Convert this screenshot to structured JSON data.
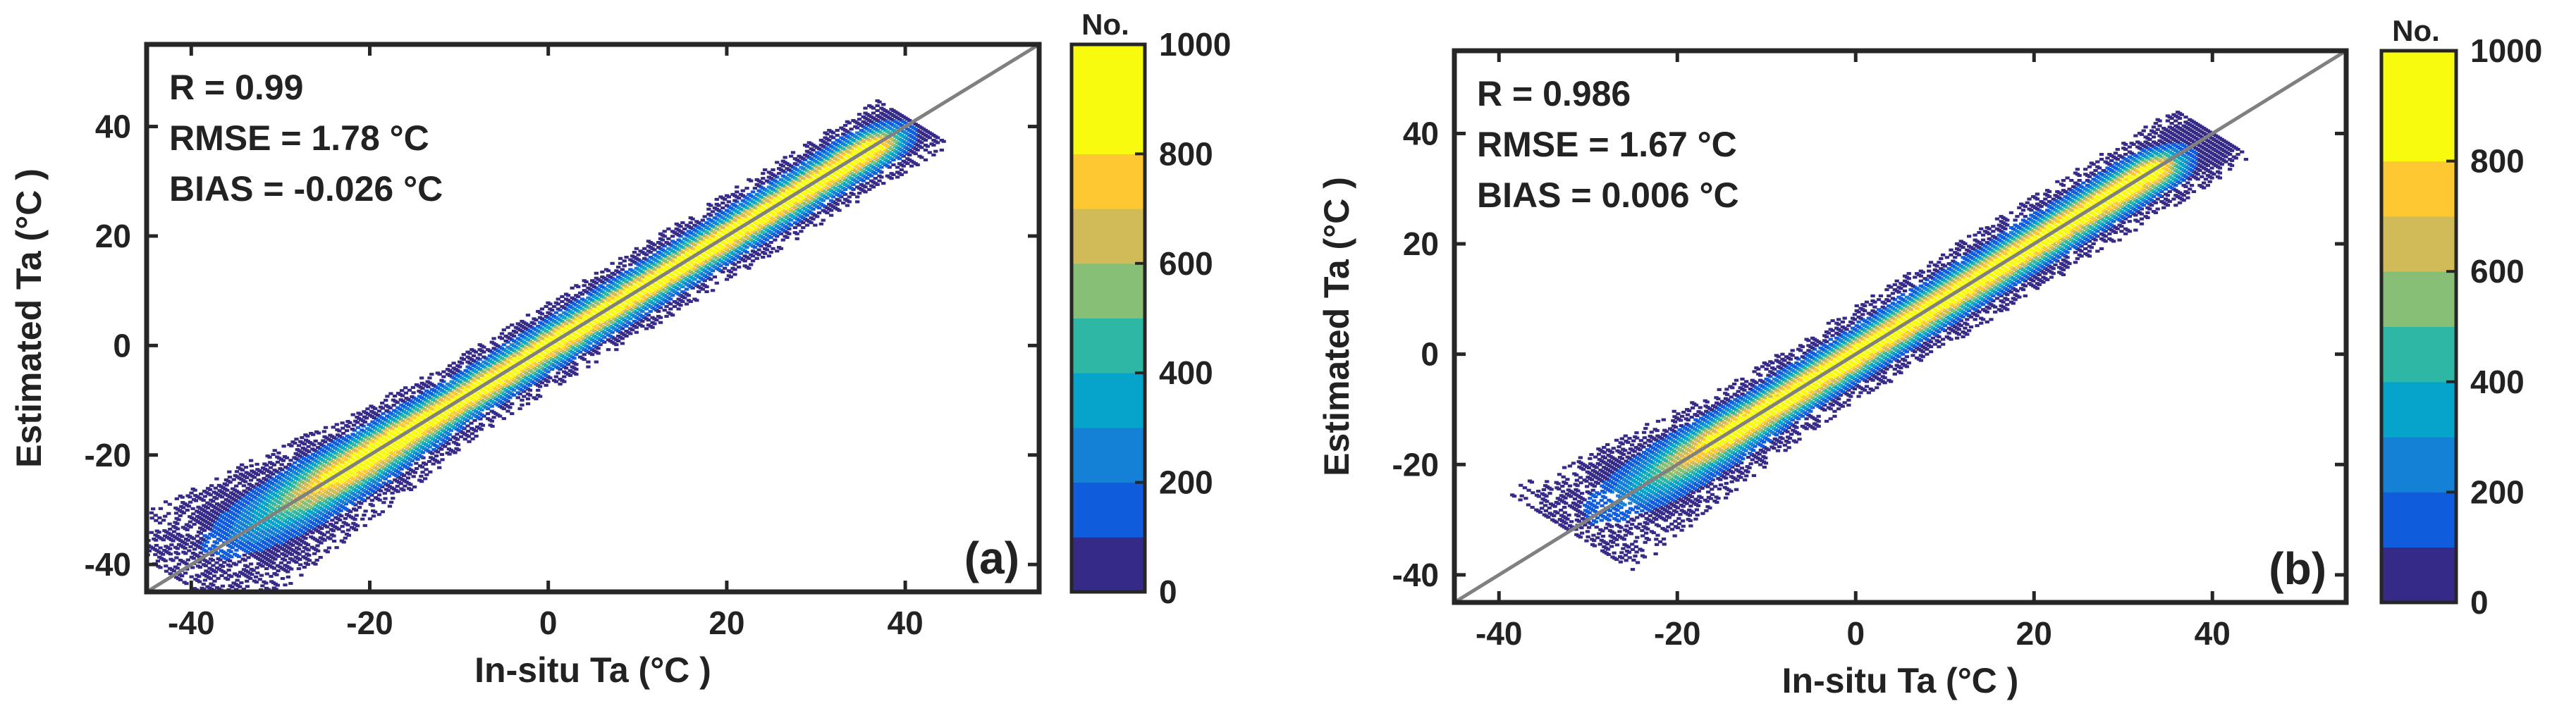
{
  "chart_data": [
    {
      "type": "heatmap",
      "panel_label": "(a)",
      "xlabel": "In-situ Ta (°C )",
      "ylabel": "Estimated Ta (°C )",
      "xlim": [
        -45,
        55
      ],
      "ylim": [
        -45,
        55
      ],
      "xticks": [
        -40,
        -20,
        0,
        20,
        40
      ],
      "yticks": [
        -40,
        -20,
        0,
        20,
        40
      ],
      "xtick_labels": [
        "-40",
        "-20",
        "0",
        "20",
        "40"
      ],
      "ytick_labels": [
        "-40",
        "-20",
        "0",
        "20",
        "40"
      ],
      "stats": [
        "R = 0.99",
        "RMSE = 1.78 °C",
        "BIAS = -0.026 °C"
      ],
      "reference_line": "1:1",
      "density_extent": [
        -42,
        41
      ],
      "density_band_width": 3.2,
      "density_core_range": [
        -20,
        36
      ],
      "colorbar": {
        "title": "No.",
        "range": [
          0,
          1000
        ],
        "ticks": [
          0,
          200,
          400,
          600,
          800,
          1000
        ],
        "tick_labels": [
          "0",
          "200",
          "400",
          "600",
          "800",
          "1000"
        ],
        "colors": [
          "#352a87",
          "#0f5cdd",
          "#1481d6",
          "#06a4ca",
          "#2eb7a4",
          "#87bf77",
          "#d1bb59",
          "#fec832",
          "#f9fb0e",
          "#f9fb0e"
        ]
      }
    },
    {
      "type": "heatmap",
      "panel_label": "(b)",
      "xlabel": "In-situ Ta (°C )",
      "ylabel": "Estimated Ta (°C )",
      "xlim": [
        -45,
        55
      ],
      "ylim": [
        -45,
        55
      ],
      "xticks": [
        -40,
        -20,
        0,
        20,
        40
      ],
      "yticks": [
        -40,
        -20,
        0,
        20,
        40
      ],
      "xtick_labels": [
        "-40",
        "-20",
        "0",
        "20",
        "40"
      ],
      "ytick_labels": [
        "-40",
        "-20",
        "0",
        "20",
        "40"
      ],
      "stats": [
        "R = 0.986",
        "RMSE = 1.67 °C",
        "BIAS = 0.006 °C"
      ],
      "reference_line": "1:1",
      "density_extent": [
        -32,
        40
      ],
      "density_band_width": 3.4,
      "density_core_range": [
        -12,
        33
      ],
      "colorbar": {
        "title": "No.",
        "range": [
          0,
          1000
        ],
        "ticks": [
          0,
          200,
          400,
          600,
          800,
          1000
        ],
        "tick_labels": [
          "0",
          "200",
          "400",
          "600",
          "800",
          "1000"
        ],
        "colors": [
          "#352a87",
          "#0f5cdd",
          "#1481d6",
          "#06a4ca",
          "#2eb7a4",
          "#87bf77",
          "#d1bb59",
          "#fec832",
          "#f9fb0e",
          "#f9fb0e"
        ]
      }
    }
  ]
}
